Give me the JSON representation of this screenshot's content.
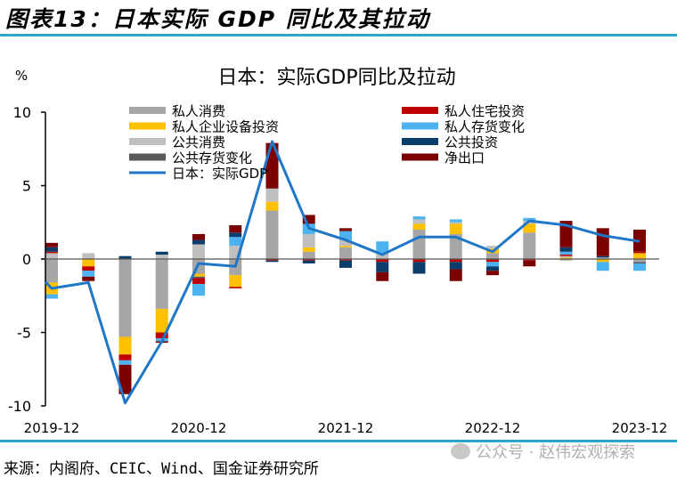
{
  "figure": {
    "title": "图表13：日本实际 GDP 同比及其拉动",
    "source": "来源：内阁府、CEIC、Wind、国金证券研究所",
    "watermark": "公众号 · 赵伟宏观探索",
    "rule_color": "#2aa8c8"
  },
  "chart_data": {
    "type": "bar",
    "stacked": true,
    "title": "日本：实际GDP同比及拉动",
    "ylabel": "%",
    "xlabel": "",
    "ylim": [
      -10,
      10
    ],
    "yticks": [
      10,
      5,
      0,
      -5,
      -10
    ],
    "grid": false,
    "legend_position": "top",
    "categories": [
      "2019-12",
      "2020-03",
      "2020-06",
      "2020-09",
      "2020-12",
      "2021-03",
      "2021-06",
      "2021-09",
      "2021-12",
      "2022-03",
      "2022-06",
      "2022-09",
      "2022-12",
      "2023-03",
      "2023-06",
      "2023-09",
      "2023-12"
    ],
    "xtick_labels": [
      "2019-12",
      "2020-12",
      "2021-12",
      "2022-12",
      "2023-12"
    ],
    "series": [
      {
        "name": "私人消费",
        "color": "#a6a6a6",
        "values": [
          -1.6,
          0.0,
          -5.3,
          -3.4,
          -1.0,
          -1.1,
          3.3,
          0.5,
          0.8,
          0.0,
          2.0,
          1.7,
          0.4,
          1.8,
          -0.1,
          0.0,
          -0.2
        ]
      },
      {
        "name": "私人企业设备投资",
        "color": "#ffc000",
        "values": [
          -0.8,
          -0.5,
          -1.2,
          -1.6,
          -0.2,
          -0.8,
          0.6,
          0.3,
          0.1,
          0.0,
          0.4,
          0.7,
          0.3,
          0.6,
          0.1,
          -0.2,
          0.4
        ]
      },
      {
        "name": "公共消费",
        "color": "#bfbfbf",
        "values": [
          0.4,
          0.4,
          0.0,
          0.3,
          1.0,
          0.9,
          0.9,
          0.9,
          0.4,
          0.4,
          0.3,
          0.1,
          0.2,
          0.2,
          0.1,
          0.1,
          0.0
        ]
      },
      {
        "name": "公共存货变化",
        "color": "#595959",
        "values": [
          0.0,
          0.0,
          0.0,
          0.0,
          -0.1,
          0.0,
          0.0,
          0.0,
          0.0,
          0.0,
          0.0,
          0.0,
          0.0,
          0.0,
          0.0,
          0.0,
          -0.1
        ]
      },
      {
        "name": "私人住宅投资",
        "color": "#c00000",
        "values": [
          0.1,
          -0.3,
          -0.4,
          -0.4,
          -0.4,
          -0.1,
          -0.1,
          -0.1,
          -0.1,
          -0.2,
          -0.2,
          -0.2,
          -0.2,
          -0.1,
          0.1,
          0.0,
          0.1
        ]
      },
      {
        "name": "私人存货变化",
        "color": "#4db3f0",
        "values": [
          -0.3,
          -0.4,
          -0.3,
          -0.2,
          -0.8,
          0.6,
          0.0,
          0.7,
          0.6,
          0.8,
          0.2,
          0.2,
          -0.3,
          0.2,
          0.2,
          -0.6,
          -0.5
        ]
      },
      {
        "name": "公共投资",
        "color": "#0b3d6b",
        "values": [
          0.3,
          0.0,
          0.2,
          0.2,
          0.3,
          0.3,
          -0.1,
          -0.2,
          -0.5,
          -0.7,
          -0.8,
          -0.5,
          -0.3,
          0.0,
          0.3,
          0.1,
          0.0
        ]
      },
      {
        "name": "净出口",
        "color": "#7b0000",
        "values": [
          0.3,
          -0.3,
          -2.0,
          -0.1,
          0.4,
          0.5,
          3.1,
          0.6,
          0.2,
          -0.6,
          0.0,
          -0.8,
          -0.3,
          -0.4,
          1.8,
          1.9,
          1.5
        ]
      }
    ],
    "line": {
      "name": "日本：实际GDP",
      "color": "#1f77c8",
      "values": [
        -2.0,
        -1.6,
        -9.8,
        -5.6,
        -0.3,
        -0.5,
        8.0,
        2.1,
        1.3,
        0.3,
        1.5,
        1.5,
        0.5,
        2.6,
        2.3,
        1.6,
        1.2
      ]
    },
    "legend": {
      "left": [
        "私人消费",
        "私人企业设备投资",
        "公共消费",
        "公共存货变化",
        "日本：实际GDP"
      ],
      "right": [
        "私人住宅投资",
        "私人存货变化",
        "公共投资",
        "净出口"
      ]
    }
  }
}
